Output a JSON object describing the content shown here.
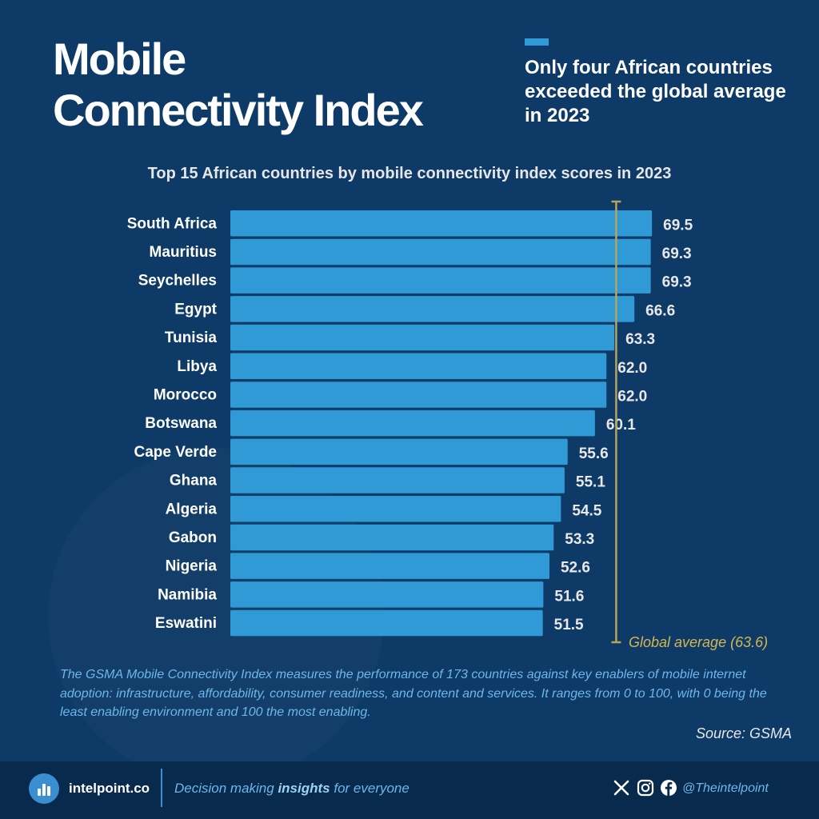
{
  "header": {
    "title_line1": "Mobile",
    "title_line2": "Connectivity Index",
    "subtitle": "Only four African countries exceeded the global average in 2023"
  },
  "colors": {
    "background": "#0d3a66",
    "bar": "#2f9ad6",
    "global_average_line": "#b8a35a",
    "footer": "#082a4d",
    "accent": "#6db7ea"
  },
  "chart_data": {
    "type": "bar",
    "orientation": "horizontal",
    "title": "Top 15 African countries by mobile connectivity index scores in 2023",
    "categories": [
      "South Africa",
      "Mauritius",
      "Seychelles",
      "Egypt",
      "Tunisia",
      "Libya",
      "Morocco",
      "Botswana",
      "Cape Verde",
      "Ghana",
      "Algeria",
      "Gabon",
      "Nigeria",
      "Namibia",
      "Eswatini"
    ],
    "values": [
      69.5,
      69.3,
      69.3,
      66.6,
      63.3,
      62.0,
      62.0,
      60.1,
      55.6,
      55.1,
      54.5,
      53.3,
      52.6,
      51.6,
      51.5
    ],
    "value_labels": [
      "69.5",
      "69.3",
      "69.3",
      "66.6",
      "63.3",
      "62.0",
      "62.0",
      "60.1",
      "55.6",
      "55.1",
      "54.5",
      "53.3",
      "52.6",
      "51.6",
      "51.5"
    ],
    "xlim": [
      0,
      70
    ],
    "grid": false,
    "reference_line": {
      "value": 63.6,
      "label": "Global average  (63.6)"
    }
  },
  "description": "The GSMA Mobile Connectivity Index measures the performance of 173 countries against key enablers of mobile internet adoption: infrastructure, affordability, consumer readiness, and content and services. It ranges from 0 to 100, with 0 being the least enabling environment and 100 the most enabling.",
  "source": "Source: GSMA",
  "footer": {
    "brand": "intelpoint.co",
    "tagline_pre": "Decision making ",
    "tagline_bold": "insights",
    "tagline_post": " for everyone",
    "handle": "@Theintelpoint",
    "icons": [
      "x-icon",
      "instagram-icon",
      "facebook-icon"
    ]
  }
}
